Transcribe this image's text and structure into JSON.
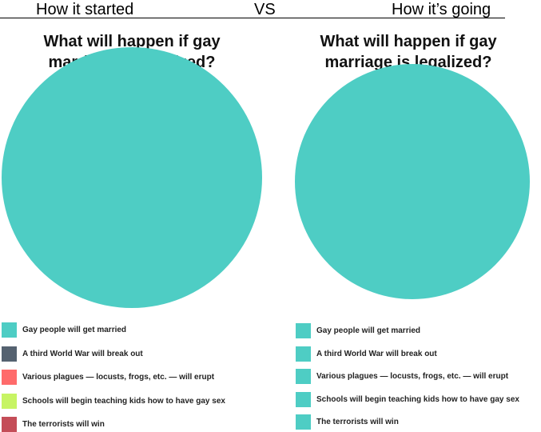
{
  "header": {
    "left": "How it started",
    "middle": "VS",
    "right": "How it’s going"
  },
  "chart_data": [
    {
      "type": "pie",
      "title": "What will happen if gay marriage is legalized?",
      "categories": [
        "Gay people will get married",
        "A third World War will break out",
        "Various plagues — locusts, frogs, etc. — will erupt",
        "Schools will begin teaching kids how to have gay sex",
        "The terrorists will win"
      ],
      "values": [
        100,
        0,
        0,
        0,
        0
      ],
      "colors": [
        "#4ecdc4",
        "#556270",
        "#ff6b6b",
        "#c7f464",
        "#c44d58"
      ]
    },
    {
      "type": "pie",
      "title": "What will happen if gay marriage is legalized?",
      "categories": [
        "Gay people will get married",
        "A third World War will break out",
        "Various plagues — locusts, frogs, etc. — will erupt",
        "Schools will begin teaching kids how to have gay sex",
        "The terrorists will win"
      ],
      "values": [
        100,
        0,
        0,
        0,
        0
      ],
      "colors": [
        "#4ecdc4",
        "#4ecdc4",
        "#4ecdc4",
        "#4ecdc4",
        "#4ecdc4"
      ]
    }
  ]
}
